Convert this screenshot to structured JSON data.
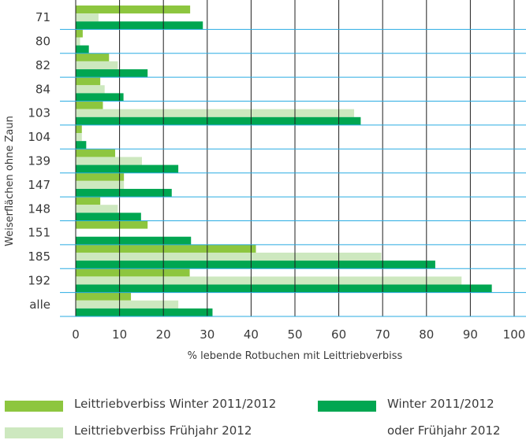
{
  "chart_data": {
    "type": "bar",
    "orientation": "horizontal",
    "ylabel": "Weiserflächen ohne Zaun",
    "xlabel": "% lebende Rotbuchen mit Leittriebverbiss",
    "xlim": [
      0,
      100
    ],
    "xticks": [
      0,
      10,
      20,
      30,
      40,
      50,
      60,
      70,
      80,
      90,
      100
    ],
    "grid": "horizontal and vertical",
    "legend_position": "bottom",
    "categories": [
      "71",
      "80",
      "82",
      "84",
      "103",
      "104",
      "139",
      "147",
      "148",
      "151",
      "185",
      "192",
      "alle"
    ],
    "series": [
      {
        "name": "Leittriebverbiss Winter 2011/2012",
        "color": "#8dc63f",
        "values": [
          26.1,
          1.6,
          7.6,
          5.6,
          6.2,
          1.4,
          9.0,
          11.0,
          5.6,
          16.4,
          41.1,
          26.0,
          12.6
        ]
      },
      {
        "name": "Leittriebverbiss Frühjahr 2012",
        "color": "#cde8bf",
        "values": [
          5.2,
          1.0,
          9.6,
          6.6,
          63.5,
          1.4,
          15.1,
          11.0,
          9.6,
          0,
          69.7,
          88.0,
          23.4
        ]
      },
      {
        "name": "Winter 2011/2012 oder Frühjahr 2012",
        "color": "#00a651",
        "values": [
          29.0,
          3.0,
          16.4,
          10.9,
          65.0,
          2.4,
          23.4,
          21.9,
          14.9,
          26.3,
          82.0,
          94.9,
          31.2
        ]
      }
    ]
  },
  "legend": {
    "items": [
      {
        "label": "Leittriebverbiss Winter 2011/2012",
        "color": "#8dc63f"
      },
      {
        "label": "Leittriebverbiss Frühjahr 2012",
        "color": "#cde8bf"
      },
      {
        "label": "Winter 2011/2012",
        "label_line2": "oder Frühjahr 2012",
        "color": "#00a651"
      }
    ]
  },
  "colors": {
    "grid": "#29abe2",
    "text": "#3a3a3a"
  }
}
